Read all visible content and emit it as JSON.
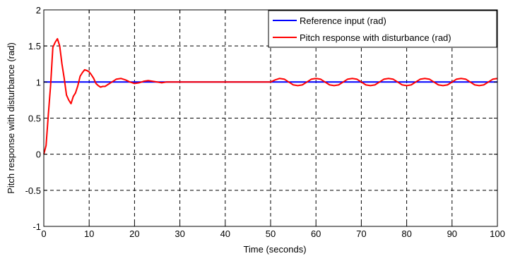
{
  "chart_data": {
    "type": "line",
    "title": "",
    "xlabel": "Time (seconds)",
    "ylabel": "Pitch response  with disturbance  (rad)",
    "xlim": [
      0,
      100
    ],
    "ylim": [
      -1,
      2
    ],
    "xticks": [
      0,
      10,
      20,
      30,
      40,
      50,
      60,
      70,
      80,
      90,
      100
    ],
    "yticks": [
      -1,
      -0.5,
      0,
      0.5,
      1,
      1.5,
      2
    ],
    "xtick_labels": [
      "0",
      "10",
      "20",
      "30",
      "40",
      "50",
      "60",
      "70",
      "80",
      "90",
      "100"
    ],
    "ytick_labels": [
      "-1",
      "-0.5",
      "0",
      "0.5",
      "1",
      "1.5",
      "2"
    ],
    "grid": true,
    "grid_style": "dashed",
    "legend_position": "top-right",
    "series": [
      {
        "name": "Reference input (rad)",
        "color": "#0000ff",
        "x": [
          0,
          100
        ],
        "y": [
          1,
          1
        ]
      },
      {
        "name": "Pitch response with disturbance (rad)",
        "color": "#ff0000",
        "x": [
          0,
          0.5,
          1,
          1.5,
          2,
          2.5,
          3,
          3.5,
          4,
          4.5,
          5,
          5.5,
          6,
          6.5,
          7,
          7.5,
          8,
          8.5,
          9,
          9.5,
          10,
          10.5,
          11,
          11.5,
          12,
          12.5,
          13,
          13.5,
          14,
          14.5,
          15,
          15.5,
          16,
          17,
          18,
          19,
          20,
          21,
          22,
          23,
          24,
          25,
          26,
          27,
          28,
          29,
          30,
          32,
          34,
          36,
          38,
          40,
          42,
          44,
          46,
          48,
          50,
          51,
          52,
          53,
          54,
          55,
          56,
          57,
          58,
          59,
          60,
          61,
          62,
          63,
          64,
          65,
          66,
          67,
          68,
          69,
          70,
          71,
          72,
          73,
          74,
          75,
          76,
          77,
          78,
          79,
          80,
          81,
          82,
          83,
          84,
          85,
          86,
          87,
          88,
          89,
          90,
          91,
          92,
          93,
          94,
          95,
          96,
          97,
          98,
          99,
          100
        ],
        "y": [
          0,
          0.12,
          0.55,
          0.95,
          1.48,
          1.55,
          1.6,
          1.5,
          1.25,
          1.05,
          0.82,
          0.75,
          0.7,
          0.8,
          0.85,
          0.95,
          1.08,
          1.13,
          1.17,
          1.16,
          1.14,
          1.1,
          1.05,
          0.98,
          0.95,
          0.93,
          0.94,
          0.94,
          0.96,
          0.98,
          1.0,
          1.02,
          1.04,
          1.05,
          1.03,
          1.0,
          0.98,
          0.99,
          1.01,
          1.02,
          1.01,
          1.0,
          0.99,
          1.0,
          1.0,
          1.0,
          1.0,
          1.0,
          1.0,
          1.0,
          1.0,
          1.0,
          1.0,
          1.0,
          1.0,
          1.0,
          1.0,
          1.03,
          1.05,
          1.04,
          1.0,
          0.96,
          0.95,
          0.96,
          1.0,
          1.04,
          1.05,
          1.04,
          1.0,
          0.96,
          0.95,
          0.96,
          1.0,
          1.04,
          1.05,
          1.04,
          1.0,
          0.96,
          0.95,
          0.96,
          1.0,
          1.04,
          1.05,
          1.04,
          1.0,
          0.96,
          0.95,
          0.96,
          1.0,
          1.04,
          1.05,
          1.04,
          1.0,
          0.96,
          0.95,
          0.96,
          1.0,
          1.04,
          1.05,
          1.04,
          1.0,
          0.96,
          0.95,
          0.96,
          1.0,
          1.04,
          1.05
        ]
      }
    ]
  }
}
